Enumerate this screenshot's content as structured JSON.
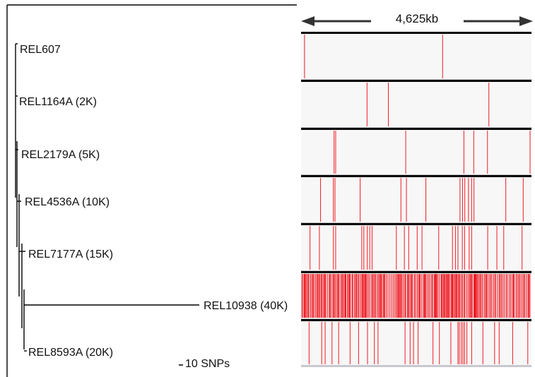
{
  "genome_length_label": "4,625kb",
  "scale_bar_label": "10 SNPs",
  "colors": {
    "snp": "#ee1c24",
    "track_bg": "#f7f7f7",
    "border": "#000000",
    "branch": "#000000",
    "arrow": "#333333",
    "separator": "#c8c8d0"
  },
  "strains": [
    {
      "id": "REL607",
      "label": "REL607",
      "snps": [
        0.012,
        0.615
      ]
    },
    {
      "id": "REL1164A",
      "label": "REL1164A (2K)",
      "snps": [
        0.285,
        0.378,
        0.817
      ]
    },
    {
      "id": "REL2179A",
      "label": "REL2179A (5K)",
      "snps": [
        0.141,
        0.148,
        0.454,
        0.708,
        0.751,
        0.811,
        0.997
      ]
    },
    {
      "id": "REL4536A",
      "label": "REL4536A (10K)",
      "snps": [
        0.082,
        0.138,
        0.145,
        0.255,
        0.433,
        0.457,
        0.542,
        0.691,
        0.702,
        0.712,
        0.728,
        0.742,
        0.752,
        0.891,
        0.967
      ]
    },
    {
      "id": "REL7177A",
      "label": "REL7177A (15K)",
      "snps": [
        0.036,
        0.077,
        0.138,
        0.148,
        0.262,
        0.271,
        0.286,
        0.297,
        0.307,
        0.413,
        0.448,
        0.467,
        0.504,
        0.525,
        0.598,
        0.658,
        0.671,
        0.682,
        0.701,
        0.711,
        0.731,
        0.742,
        0.812,
        0.852,
        0.882,
        0.962
      ]
    },
    {
      "id": "REL10938",
      "label": "REL10938 (40K)",
      "snps": "dense"
    },
    {
      "id": "REL8593A",
      "label": "REL8593A (20K)",
      "snps": [
        0.032,
        0.087,
        0.102,
        0.132,
        0.161,
        0.211,
        0.248,
        0.287,
        0.317,
        0.333,
        0.451,
        0.473,
        0.488,
        0.508,
        0.573,
        0.601,
        0.651,
        0.682,
        0.688,
        0.697,
        0.704,
        0.711,
        0.721,
        0.742,
        0.791,
        0.842,
        0.862,
        0.921,
        0.987
      ]
    }
  ]
}
